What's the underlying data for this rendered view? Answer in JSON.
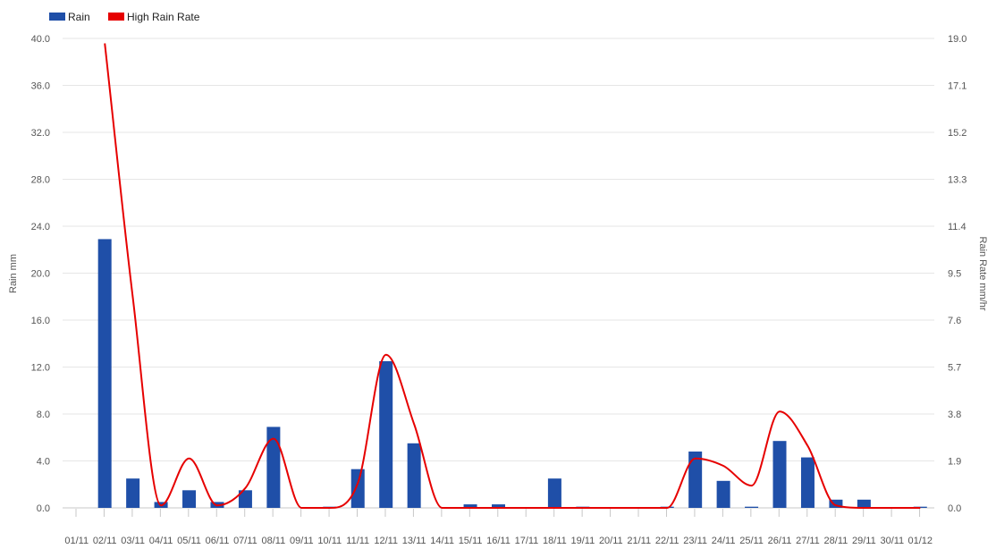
{
  "chart_data": {
    "type": "bar",
    "title": "",
    "legend_position": "top-left",
    "grid": true,
    "colors": {
      "bar": "#1f4fa8",
      "line": "#e60000",
      "grid": "#e6e6e6",
      "text": "#555555"
    },
    "categories": [
      "01/11",
      "02/11",
      "03/11",
      "04/11",
      "05/11",
      "06/11",
      "07/11",
      "08/11",
      "09/11",
      "10/11",
      "11/11",
      "12/11",
      "13/11",
      "14/11",
      "15/11",
      "16/11",
      "17/11",
      "18/11",
      "19/11",
      "20/11",
      "21/11",
      "22/11",
      "23/11",
      "24/11",
      "25/11",
      "26/11",
      "27/11",
      "28/11",
      "29/11",
      "30/11",
      "01/12"
    ],
    "y_left": {
      "label": "Rain mm",
      "min": 0,
      "max": 40,
      "ticks": [
        "0.0",
        "4.0",
        "8.0",
        "12.0",
        "16.0",
        "20.0",
        "24.0",
        "28.0",
        "32.0",
        "36.0",
        "40.0"
      ]
    },
    "y_right": {
      "label": "Rain Rate mm/hr",
      "min": 0,
      "max": 19,
      "ticks": [
        "0.0",
        "1.9",
        "3.8",
        "5.7",
        "7.6",
        "9.5",
        "11.4",
        "13.3",
        "15.2",
        "17.1",
        "19.0"
      ]
    },
    "series": [
      {
        "name": "Rain",
        "type": "bar",
        "axis": "left",
        "values": [
          0,
          22.9,
          2.5,
          0.5,
          1.5,
          0.5,
          1.5,
          6.9,
          0,
          0.1,
          3.3,
          12.5,
          5.5,
          0,
          0.3,
          0.3,
          0,
          2.5,
          0.1,
          0,
          0,
          0.1,
          4.8,
          2.3,
          0.1,
          5.7,
          4.3,
          0.7,
          0.7,
          0,
          0.1
        ]
      },
      {
        "name": "High Rain Rate",
        "type": "line",
        "axis": "right",
        "values": [
          null,
          18.8,
          8.5,
          0.1,
          2.0,
          0.1,
          0.8,
          2.8,
          0,
          0,
          1.0,
          6.2,
          3.4,
          0,
          0,
          0,
          0,
          0,
          0,
          0,
          0,
          0,
          2.0,
          1.7,
          0.9,
          3.9,
          2.5,
          0.1,
          0,
          0,
          0
        ]
      }
    ]
  }
}
